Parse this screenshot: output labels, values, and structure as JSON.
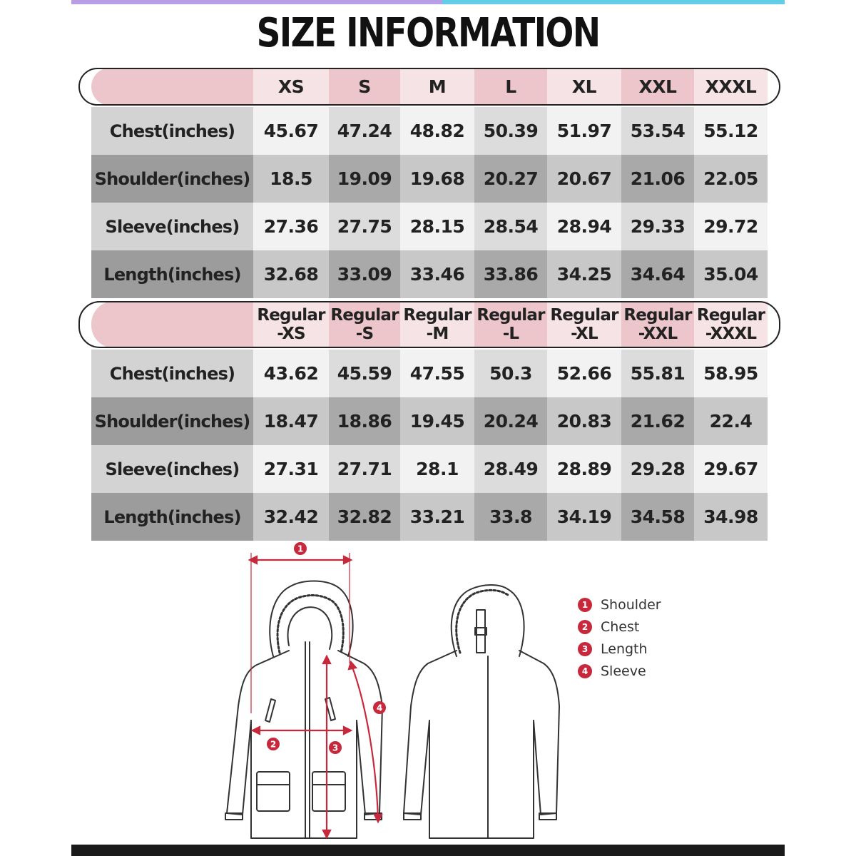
{
  "title": "SIZE INFORMATION",
  "colors": {
    "header_pink": "#edc6cb",
    "header_pink_light": "#f6e3e5",
    "row_light": "#f2f2f2",
    "row_dark": "#a9a9a9",
    "accent_red": "#c8283c"
  },
  "table1": {
    "sizes": [
      "XS",
      "S",
      "M",
      "L",
      "XL",
      "XXL",
      "XXXL"
    ],
    "rows": [
      {
        "label": "Chest(inches)",
        "values": [
          "45.67",
          "47.24",
          "48.82",
          "50.39",
          "51.97",
          "53.54",
          "55.12"
        ]
      },
      {
        "label": "Shoulder(inches)",
        "values": [
          "18.5",
          "19.09",
          "19.68",
          "20.27",
          "20.67",
          "21.06",
          "22.05"
        ]
      },
      {
        "label": "Sleeve(inches)",
        "values": [
          "27.36",
          "27.75",
          "28.15",
          "28.54",
          "28.94",
          "29.33",
          "29.72"
        ]
      },
      {
        "label": "Length(inches)",
        "values": [
          "32.68",
          "33.09",
          "33.46",
          "33.86",
          "34.25",
          "34.64",
          "35.04"
        ]
      }
    ]
  },
  "table2": {
    "sizes": [
      {
        "line1": "Regular",
        "line2": "-XS"
      },
      {
        "line1": "Regular",
        "line2": "-S"
      },
      {
        "line1": "Regular",
        "line2": "-M"
      },
      {
        "line1": "Regular",
        "line2": "-L"
      },
      {
        "line1": "Regular",
        "line2": "-XL"
      },
      {
        "line1": "Regular",
        "line2": "-XXL"
      },
      {
        "line1": "Regular",
        "line2": "-XXXL"
      }
    ],
    "rows": [
      {
        "label": "Chest(inches)",
        "values": [
          "43.62",
          "45.59",
          "47.55",
          "50.3",
          "52.66",
          "55.81",
          "58.95"
        ]
      },
      {
        "label": "Shoulder(inches)",
        "values": [
          "18.47",
          "18.86",
          "19.45",
          "20.24",
          "20.83",
          "21.62",
          "22.4"
        ]
      },
      {
        "label": "Sleeve(inches)",
        "values": [
          "27.31",
          "27.71",
          "28.1",
          "28.49",
          "28.89",
          "29.28",
          "29.67"
        ]
      },
      {
        "label": "Length(inches)",
        "values": [
          "32.42",
          "32.82",
          "33.21",
          "33.8",
          "34.19",
          "34.58",
          "34.98"
        ]
      }
    ]
  },
  "diagram": {
    "markers": [
      "1",
      "2",
      "3",
      "4"
    ]
  },
  "legend": [
    {
      "num": "1",
      "label": "Shoulder"
    },
    {
      "num": "2",
      "label": "Chest"
    },
    {
      "num": "3",
      "label": "Length"
    },
    {
      "num": "4",
      "label": "Sleeve"
    }
  ]
}
